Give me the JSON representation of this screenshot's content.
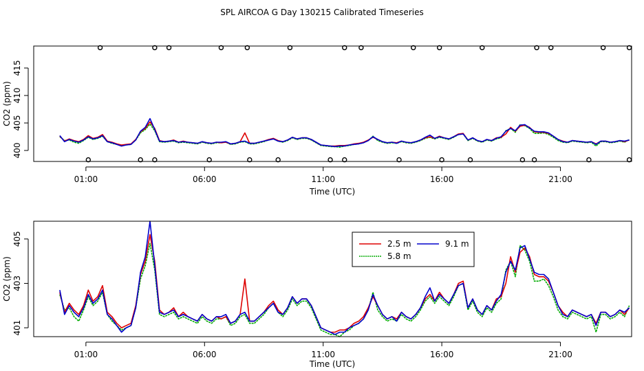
{
  "title": "SPL AIRCOA G  Day 130215  Calibrated Timeseries",
  "colors": {
    "2.5 m": "#dd0000",
    "5.8 m": "#00aa00",
    "9.1 m": "#0000cc"
  },
  "chart_data": [
    {
      "type": "line",
      "xlabel": "Time (UTC)",
      "ylabel": "CO2 (ppm)",
      "xlim": [
        -1.2,
        24.0
      ],
      "ylim": [
        398,
        419
      ],
      "xticks": [
        1,
        6,
        11,
        16,
        21
      ],
      "xtick_labels": [
        "01:00",
        "06:00",
        "11:00",
        "16:00",
        "21:00"
      ],
      "yticks": [
        400,
        405,
        410,
        415
      ],
      "ytick_labels": [
        "400",
        "405",
        "410",
        "415"
      ],
      "legend": "none",
      "series_names": [
        "2.5 m",
        "5.8 m",
        "9.1 m"
      ],
      "series_style": "lines",
      "cal_markers": {
        "y_high": 418.7,
        "y_low": 398.3,
        "high_x": [
          1.6,
          3.9,
          4.5,
          6.7,
          7.8,
          9.6,
          11.9,
          12.6,
          14.8,
          15.9,
          17.7,
          20.0,
          20.6,
          22.8,
          23.9
        ],
        "low_x": [
          1.1,
          3.3,
          3.9,
          6.2,
          7.9,
          9.1,
          11.3,
          11.9,
          14.2,
          16.0,
          17.2,
          19.4,
          19.9,
          22.2,
          23.9
        ]
      }
    },
    {
      "type": "line",
      "xlabel": "Time (UTC)",
      "ylabel": "CO2 (ppm)",
      "xlim": [
        -1.2,
        24.0
      ],
      "ylim": [
        400.6,
        405.8
      ],
      "xticks": [
        1,
        6,
        11,
        16,
        21
      ],
      "xtick_labels": [
        "01:00",
        "06:00",
        "11:00",
        "16:00",
        "21:00"
      ],
      "yticks": [
        401,
        403,
        405
      ],
      "ytick_labels": [
        "401",
        "403",
        "405"
      ],
      "legend": "top-right",
      "legend_entries": [
        "2.5 m",
        "5.8 m",
        "9.1 m"
      ]
    }
  ],
  "series": [
    {
      "name": "2.5 m",
      "x": [
        -0.1,
        0.1,
        0.3,
        0.5,
        0.7,
        0.9,
        1.1,
        1.3,
        1.5,
        1.7,
        1.9,
        2.1,
        2.3,
        2.5,
        2.7,
        2.9,
        3.1,
        3.3,
        3.5,
        3.7,
        3.9,
        4.1,
        4.3,
        4.5,
        4.7,
        4.9,
        5.1,
        5.3,
        5.5,
        5.7,
        5.9,
        6.1,
        6.3,
        6.5,
        6.7,
        6.9,
        7.1,
        7.3,
        7.5,
        7.7,
        7.9,
        8.1,
        8.3,
        8.5,
        8.7,
        8.9,
        9.1,
        9.3,
        9.5,
        9.7,
        9.9,
        10.1,
        10.3,
        10.5,
        10.7,
        10.9,
        11.1,
        11.3,
        11.5,
        11.7,
        11.9,
        12.1,
        12.3,
        12.5,
        12.7,
        12.9,
        13.1,
        13.3,
        13.5,
        13.7,
        13.9,
        14.1,
        14.3,
        14.5,
        14.7,
        14.9,
        15.1,
        15.3,
        15.5,
        15.7,
        15.9,
        16.1,
        16.3,
        16.5,
        16.7,
        16.9,
        17.1,
        17.3,
        17.5,
        17.7,
        17.9,
        18.1,
        18.3,
        18.5,
        18.7,
        18.9,
        19.1,
        19.3,
        19.5,
        19.7,
        19.9,
        20.1,
        20.3,
        20.5,
        20.7,
        20.9,
        21.1,
        21.3,
        21.5,
        21.7,
        21.9,
        22.1,
        22.3,
        22.5,
        22.7,
        22.9,
        23.1,
        23.3,
        23.5,
        23.7,
        23.9
      ],
      "values": [
        402.6,
        401.7,
        402.1,
        401.8,
        401.6,
        402.0,
        402.7,
        402.2,
        402.4,
        402.9,
        401.7,
        401.5,
        401.2,
        401.0,
        401.1,
        401.2,
        402.0,
        403.4,
        404.0,
        405.2,
        404.0,
        401.8,
        401.6,
        401.7,
        401.9,
        401.5,
        401.7,
        401.5,
        401.4,
        401.3,
        401.6,
        401.4,
        401.3,
        401.5,
        401.4,
        401.5,
        401.2,
        401.3,
        401.6,
        403.2,
        401.3,
        401.3,
        401.5,
        401.7,
        402.0,
        402.2,
        401.8,
        401.6,
        401.9,
        402.4,
        402.1,
        402.3,
        402.3,
        402.0,
        401.5,
        401.0,
        400.9,
        400.8,
        400.8,
        400.9,
        400.9,
        401.0,
        401.2,
        401.3,
        401.5,
        401.9,
        402.4,
        402.0,
        401.6,
        401.4,
        401.5,
        401.4,
        401.7,
        401.5,
        401.4,
        401.6,
        401.9,
        402.3,
        402.5,
        402.2,
        402.6,
        402.3,
        402.1,
        402.5,
        403.0,
        403.1,
        401.9,
        402.3,
        401.8,
        401.6,
        402.0,
        401.8,
        402.3,
        402.4,
        403.0,
        404.2,
        403.5,
        404.4,
        404.6,
        404.2,
        403.4,
        403.3,
        403.3,
        403.1,
        402.6,
        402.0,
        401.7,
        401.5,
        401.8,
        401.7,
        401.6,
        401.5,
        401.6,
        401.2,
        401.7,
        401.7,
        401.5,
        401.6,
        401.8,
        401.6,
        401.9
      ]
    },
    {
      "name": "5.8 m",
      "x": [
        -0.1,
        0.1,
        0.3,
        0.5,
        0.7,
        0.9,
        1.1,
        1.3,
        1.5,
        1.7,
        1.9,
        2.1,
        2.3,
        2.5,
        2.7,
        2.9,
        3.1,
        3.3,
        3.5,
        3.7,
        3.9,
        4.1,
        4.3,
        4.5,
        4.7,
        4.9,
        5.1,
        5.3,
        5.5,
        5.7,
        5.9,
        6.1,
        6.3,
        6.5,
        6.7,
        6.9,
        7.1,
        7.3,
        7.5,
        7.7,
        7.9,
        8.1,
        8.3,
        8.5,
        8.7,
        8.9,
        9.1,
        9.3,
        9.5,
        9.7,
        9.9,
        10.1,
        10.3,
        10.5,
        10.7,
        10.9,
        11.1,
        11.3,
        11.5,
        11.7,
        11.9,
        12.1,
        12.3,
        12.5,
        12.7,
        12.9,
        13.1,
        13.3,
        13.5,
        13.7,
        13.9,
        14.1,
        14.3,
        14.5,
        14.7,
        14.9,
        15.1,
        15.3,
        15.5,
        15.7,
        15.9,
        16.1,
        16.3,
        16.5,
        16.7,
        16.9,
        17.1,
        17.3,
        17.5,
        17.7,
        17.9,
        18.1,
        18.3,
        18.5,
        18.7,
        18.9,
        19.1,
        19.3,
        19.5,
        19.7,
        19.9,
        20.1,
        20.3,
        20.5,
        20.7,
        20.9,
        21.1,
        21.3,
        21.5,
        21.7,
        21.9,
        22.1,
        22.3,
        22.5,
        22.7,
        22.9,
        23.1,
        23.3,
        23.5,
        23.7,
        23.9
      ],
      "values": [
        402.5,
        401.8,
        401.9,
        401.5,
        401.3,
        401.8,
        402.4,
        402.0,
        402.2,
        402.6,
        401.6,
        401.3,
        401.1,
        400.9,
        401.0,
        401.1,
        401.9,
        403.2,
        403.8,
        404.8,
        403.6,
        401.6,
        401.5,
        401.6,
        401.7,
        401.4,
        401.5,
        401.4,
        401.3,
        401.2,
        401.5,
        401.3,
        401.2,
        401.4,
        401.4,
        401.5,
        401.1,
        401.2,
        401.5,
        401.6,
        401.2,
        401.2,
        401.4,
        401.6,
        401.9,
        402.1,
        401.7,
        401.5,
        401.8,
        402.3,
        402.0,
        402.2,
        402.2,
        401.9,
        401.4,
        400.9,
        400.8,
        400.7,
        400.7,
        400.6,
        400.8,
        400.9,
        401.1,
        401.2,
        401.4,
        401.8,
        402.6,
        401.8,
        401.5,
        401.3,
        401.4,
        401.3,
        401.6,
        401.4,
        401.3,
        401.5,
        401.8,
        402.2,
        402.4,
        402.1,
        402.4,
        402.2,
        402.0,
        402.4,
        402.9,
        403.0,
        401.8,
        402.2,
        401.7,
        401.5,
        401.9,
        401.7,
        402.1,
        402.3,
        403.6,
        404.0,
        403.3,
        404.7,
        404.5,
        404.0,
        403.1,
        403.1,
        403.2,
        402.9,
        402.4,
        401.8,
        401.5,
        401.4,
        401.7,
        401.6,
        401.5,
        401.4,
        401.5,
        400.8,
        401.6,
        401.6,
        401.4,
        401.5,
        401.7,
        401.5,
        402.0
      ]
    },
    {
      "name": "9.1 m",
      "x": [
        -0.1,
        0.1,
        0.3,
        0.5,
        0.7,
        0.9,
        1.1,
        1.3,
        1.5,
        1.7,
        1.9,
        2.1,
        2.3,
        2.5,
        2.7,
        2.9,
        3.1,
        3.3,
        3.5,
        3.7,
        3.9,
        4.1,
        4.3,
        4.5,
        4.7,
        4.9,
        5.1,
        5.3,
        5.5,
        5.7,
        5.9,
        6.1,
        6.3,
        6.5,
        6.7,
        6.9,
        7.1,
        7.3,
        7.5,
        7.7,
        7.9,
        8.1,
        8.3,
        8.5,
        8.7,
        8.9,
        9.1,
        9.3,
        9.5,
        9.7,
        9.9,
        10.1,
        10.3,
        10.5,
        10.7,
        10.9,
        11.1,
        11.3,
        11.5,
        11.7,
        11.9,
        12.1,
        12.3,
        12.5,
        12.7,
        12.9,
        13.1,
        13.3,
        13.5,
        13.7,
        13.9,
        14.1,
        14.3,
        14.5,
        14.7,
        14.9,
        15.1,
        15.3,
        15.5,
        15.7,
        15.9,
        16.1,
        16.3,
        16.5,
        16.7,
        16.9,
        17.1,
        17.3,
        17.5,
        17.7,
        17.9,
        18.1,
        18.3,
        18.5,
        18.7,
        18.9,
        19.1,
        19.3,
        19.5,
        19.7,
        19.9,
        20.1,
        20.3,
        20.5,
        20.7,
        20.9,
        21.1,
        21.3,
        21.5,
        21.7,
        21.9,
        22.1,
        22.3,
        22.5,
        22.7,
        22.9,
        23.1,
        23.3,
        23.5,
        23.7,
        23.9
      ],
      "values": [
        402.7,
        401.6,
        402.0,
        401.7,
        401.5,
        401.9,
        402.5,
        402.1,
        402.3,
        402.7,
        401.6,
        401.4,
        401.1,
        400.8,
        401.0,
        401.1,
        401.9,
        403.5,
        404.2,
        405.8,
        403.8,
        401.7,
        401.6,
        401.7,
        401.8,
        401.5,
        401.6,
        401.5,
        401.4,
        401.3,
        401.6,
        401.4,
        401.3,
        401.5,
        401.5,
        401.6,
        401.2,
        401.3,
        401.6,
        401.7,
        401.3,
        401.3,
        401.5,
        401.7,
        401.9,
        402.1,
        401.7,
        401.6,
        401.9,
        402.4,
        402.1,
        402.3,
        402.3,
        402.0,
        401.5,
        401.0,
        400.9,
        400.8,
        400.7,
        400.8,
        400.8,
        401.0,
        401.1,
        401.2,
        401.4,
        401.8,
        402.5,
        402.0,
        401.6,
        401.4,
        401.5,
        401.3,
        401.7,
        401.5,
        401.4,
        401.6,
        401.9,
        402.4,
        402.8,
        402.2,
        402.5,
        402.3,
        402.1,
        402.5,
        402.9,
        403.0,
        401.9,
        402.3,
        401.8,
        401.6,
        402.0,
        401.8,
        402.2,
        402.5,
        403.5,
        404.0,
        403.6,
        404.6,
        404.7,
        404.1,
        403.5,
        403.4,
        403.4,
        403.2,
        402.6,
        402.0,
        401.6,
        401.5,
        401.8,
        401.7,
        401.6,
        401.5,
        401.6,
        401.1,
        401.7,
        401.7,
        401.5,
        401.6,
        401.8,
        401.7,
        401.9
      ]
    }
  ]
}
